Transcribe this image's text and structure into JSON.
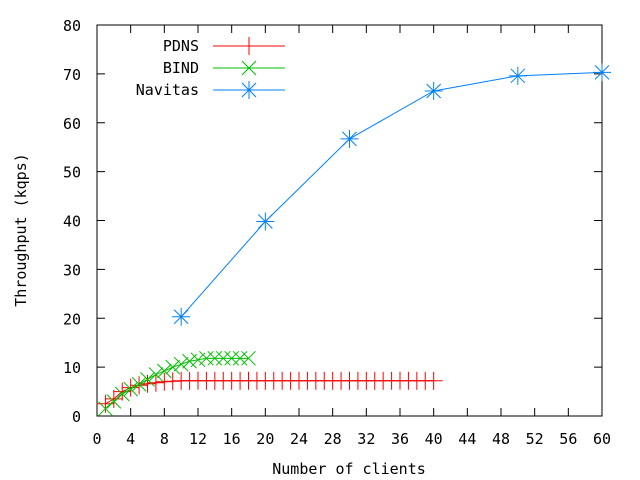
{
  "chart_data": {
    "type": "line",
    "title": "",
    "xlabel": "Number of clients",
    "ylabel": "Throughput (kqps)",
    "xlim": [
      0,
      60
    ],
    "ylim": [
      0,
      80
    ],
    "xticks": [
      "0",
      "4",
      "8",
      "12",
      "16",
      "20",
      "24",
      "28",
      "32",
      "36",
      "40",
      "44",
      "48",
      "52",
      "56",
      "60"
    ],
    "xtick_values": [
      0,
      4,
      8,
      12,
      16,
      20,
      24,
      28,
      32,
      36,
      40,
      44,
      48,
      52,
      56,
      60
    ],
    "yticks": [
      "0",
      "10",
      "20",
      "30",
      "40",
      "50",
      "60",
      "70",
      "80"
    ],
    "ytick_values": [
      0,
      10,
      20,
      30,
      40,
      50,
      60,
      70,
      80
    ],
    "grid": false,
    "legend_position": "top-left",
    "series": [
      {
        "name": "PDNS",
        "color": "#ff0000",
        "marker": "plus",
        "x": [
          1,
          2,
          3,
          4,
          5,
          6,
          7,
          8,
          9,
          10,
          11,
          12,
          13,
          14,
          15,
          16,
          17,
          18,
          19,
          20,
          21,
          22,
          23,
          24,
          25,
          26,
          27,
          28,
          29,
          30,
          31,
          32,
          33,
          34,
          35,
          36,
          37,
          38,
          39,
          40
        ],
        "y": [
          2.5,
          3.5,
          5,
          5.8,
          6.3,
          6.6,
          6.8,
          7,
          7.1,
          7.2,
          7.2,
          7.2,
          7.2,
          7.2,
          7.2,
          7.2,
          7.2,
          7.2,
          7.2,
          7.2,
          7.2,
          7.2,
          7.2,
          7.2,
          7.2,
          7.2,
          7.2,
          7.2,
          7.2,
          7.2,
          7.2,
          7.2,
          7.2,
          7.2,
          7.2,
          7.2,
          7.2,
          7.2,
          7.2,
          7.2
        ]
      },
      {
        "name": "BIND",
        "color": "#00c000",
        "marker": "cross",
        "x": [
          1,
          2,
          3,
          4,
          5,
          6,
          7,
          8,
          9,
          10,
          11,
          12,
          13,
          14,
          15,
          16,
          17,
          18
        ],
        "y": [
          1.5,
          3,
          4.5,
          5.5,
          6.5,
          7.5,
          8.5,
          9.2,
          10,
          10.6,
          11.2,
          11.5,
          11.8,
          11.8,
          11.8,
          11.8,
          11.8,
          11.8
        ]
      },
      {
        "name": "Navitas",
        "color": "#0080ff",
        "marker": "star",
        "x": [
          10,
          20,
          30,
          40,
          50,
          60
        ],
        "y": [
          20.3,
          39.8,
          56.7,
          66.5,
          69.6,
          70.3
        ]
      }
    ]
  }
}
